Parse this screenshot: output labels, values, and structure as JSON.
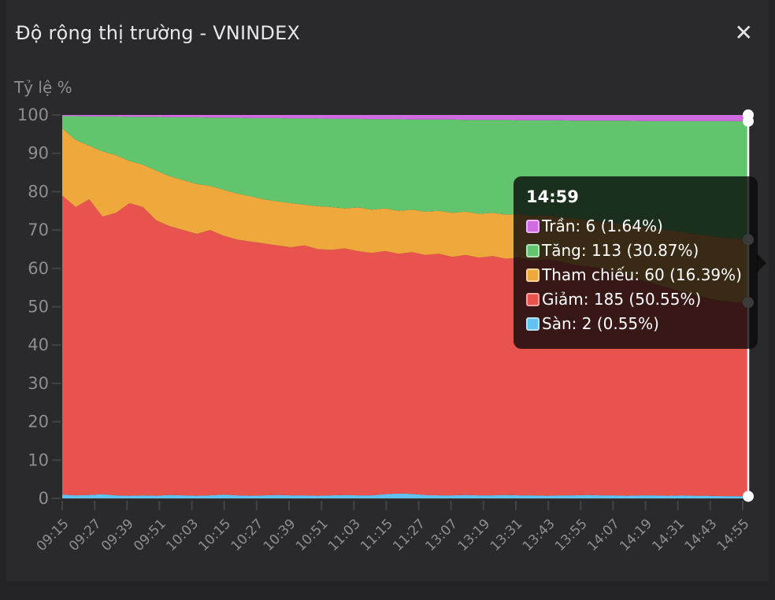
{
  "header": {
    "title": "Độ rộng thị trường - VNINDEX",
    "close_icon": "✕"
  },
  "theme": {
    "page_bg": "#232326",
    "modal_bg": "#2a2a2d",
    "title_color": "#e8e8ea",
    "axis_text": "#8d8d92",
    "tick_color": "#434347",
    "crosshair_color": "#ffffff",
    "tooltip_bg": "rgba(10,10,10,0.8)",
    "tooltip_text": "#ffffff"
  },
  "chart_data": {
    "type": "area",
    "subtype": "stacked_area_100pct",
    "title": "Độ rộng thị trường - VNINDEX",
    "xlabel": "",
    "ylabel": "Tỷ lệ %",
    "ylim": [
      0,
      100
    ],
    "grid": false,
    "legend_position": "tooltip-only",
    "y_ticks": [
      0,
      10,
      20,
      30,
      40,
      50,
      60,
      70,
      80,
      90,
      100
    ],
    "x_labels": [
      "09:15",
      "09:27",
      "09:39",
      "09:51",
      "10:03",
      "10:15",
      "10:27",
      "10:39",
      "10:51",
      "11:03",
      "11:15",
      "11:27",
      "13:07",
      "13:19",
      "13:31",
      "13:43",
      "13:55",
      "14:07",
      "14:19",
      "14:31",
      "14:43",
      "14:55"
    ],
    "x_range_note": "samples uniformly spaced from 09:15 to 14:59",
    "bands_note": "bands bottom-to-top; cum_top = cumulative stacked percentage at the top edge of each band",
    "bands": [
      {
        "name": "Sàn",
        "color": "#62c1ee",
        "swatch_border": "#b5e2f8",
        "count": 2,
        "pct": 0.55,
        "cum_top": [
          1.0,
          0.8,
          0.9,
          1.1,
          0.8,
          0.7,
          0.8,
          0.7,
          0.9,
          0.8,
          0.7,
          0.8,
          1.0,
          0.8,
          0.7,
          0.8,
          0.9,
          0.8,
          0.8,
          0.7,
          0.8,
          0.9,
          0.8,
          0.8,
          1.1,
          1.3,
          1.2,
          0.9,
          0.8,
          0.8,
          0.9,
          0.8,
          0.8,
          0.9,
          0.8,
          0.8,
          0.7,
          0.8,
          0.8,
          0.9,
          0.8,
          0.8,
          0.7,
          0.8,
          0.8,
          0.7,
          0.8,
          0.7,
          0.7,
          0.6,
          0.6,
          0.55
        ]
      },
      {
        "name": "Giảm",
        "color": "#e8534e",
        "swatch_border": "#f4a3a0",
        "count": 185,
        "pct": 50.55,
        "cum_top": [
          79.0,
          76.0,
          78.0,
          73.5,
          74.5,
          77.0,
          76.0,
          72.5,
          71.0,
          70.0,
          69.0,
          70.0,
          68.5,
          67.5,
          67.0,
          66.5,
          66.0,
          65.5,
          66.0,
          65.0,
          64.8,
          65.2,
          64.5,
          64.0,
          64.5,
          63.8,
          64.2,
          63.5,
          63.8,
          63.0,
          63.5,
          62.8,
          63.2,
          62.5,
          62.8,
          62.0,
          62.4,
          61.8,
          61.0,
          60.5,
          60.0,
          59.0,
          58.0,
          57.0,
          56.0,
          55.0,
          54.0,
          53.0,
          52.2,
          51.6,
          51.2,
          51.1
        ]
      },
      {
        "name": "Tham chiếu",
        "color": "#efa83c",
        "swatch_border": "#f7d49a",
        "count": 60,
        "pct": 16.39,
        "cum_top": [
          96.5,
          93.5,
          92.0,
          90.5,
          89.5,
          88.0,
          87.0,
          85.5,
          84.0,
          83.0,
          82.0,
          81.5,
          80.5,
          79.5,
          78.8,
          78.0,
          77.5,
          77.0,
          76.6,
          76.2,
          76.0,
          75.6,
          75.9,
          75.3,
          75.6,
          75.0,
          75.3,
          74.8,
          75.0,
          74.5,
          74.8,
          74.2,
          74.5,
          74.0,
          74.2,
          73.6,
          73.9,
          73.3,
          73.0,
          72.6,
          72.2,
          71.8,
          71.4,
          71.0,
          70.5,
          70.0,
          69.5,
          69.0,
          68.5,
          68.0,
          67.7,
          67.49
        ]
      },
      {
        "name": "Tăng",
        "color": "#62c46c",
        "swatch_border": "#b2e3b6",
        "count": 113,
        "pct": 30.87,
        "cum_top": [
          99.7,
          99.7,
          99.6,
          99.6,
          99.6,
          99.5,
          99.5,
          99.5,
          99.4,
          99.4,
          99.4,
          99.3,
          99.3,
          99.3,
          99.2,
          99.2,
          99.2,
          99.1,
          99.1,
          99.1,
          99.0,
          99.0,
          99.0,
          98.9,
          98.9,
          98.9,
          98.8,
          98.8,
          98.8,
          98.8,
          98.7,
          98.7,
          98.7,
          98.7,
          98.6,
          98.6,
          98.6,
          98.6,
          98.5,
          98.5,
          98.5,
          98.5,
          98.5,
          98.4,
          98.4,
          98.4,
          98.4,
          98.4,
          98.4,
          98.4,
          98.4,
          98.36
        ]
      },
      {
        "name": "Trần",
        "color": "#d06be2",
        "swatch_border": "#efb3f5",
        "count": 6,
        "pct": 1.64,
        "cum_top": 100
      }
    ],
    "crosshair": {
      "x_label": "14:59",
      "marker_values_pct": [
        0.55,
        51.1,
        67.49,
        98.36,
        100
      ]
    }
  },
  "tooltip": {
    "time": "14:59",
    "rows": [
      {
        "label": "Trần",
        "value": "6",
        "pct": "1.64%",
        "color": "#d06be2",
        "border": "#efb3f5"
      },
      {
        "label": "Tăng",
        "value": "113",
        "pct": "30.87%",
        "color": "#62c46c",
        "border": "#b2e3b6"
      },
      {
        "label": "Tham chiếu",
        "value": "60",
        "pct": "16.39%",
        "color": "#efa83c",
        "border": "#f7d49a"
      },
      {
        "label": "Giảm",
        "value": "185",
        "pct": "50.55%",
        "color": "#e8534e",
        "border": "#f4a3a0"
      },
      {
        "label": "Sàn",
        "value": "2",
        "pct": "0.55%",
        "color": "#62c1ee",
        "border": "#b5e2f8"
      }
    ]
  }
}
